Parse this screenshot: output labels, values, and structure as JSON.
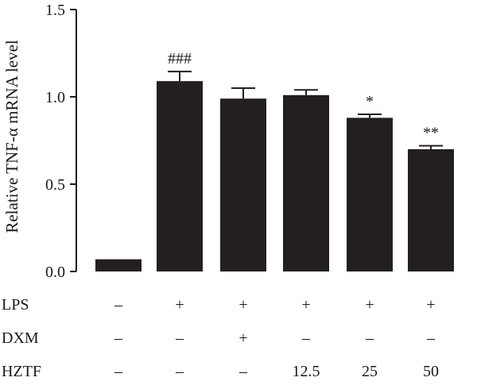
{
  "chart_data": {
    "type": "bar",
    "ylabel": "Relative TNF-α mRNA level",
    "ylim": [
      0,
      1.5
    ],
    "yticks": [
      "0.0",
      "0.5",
      "1.0",
      "1.5"
    ],
    "bar_color": "#231f20",
    "values": [
      0.07,
      1.09,
      0.99,
      1.01,
      0.88,
      0.7
    ],
    "errors": [
      0.0,
      0.055,
      0.06,
      0.03,
      0.02,
      0.02
    ],
    "annotations": [
      "",
      "###",
      "",
      "",
      "*",
      "**"
    ],
    "conditions": [
      {
        "label": "LPS",
        "values": [
          "–",
          "+",
          "+",
          "+",
          "+",
          "+"
        ]
      },
      {
        "label": "DXM",
        "values": [
          "–",
          "–",
          "+",
          "–",
          "–",
          "–"
        ]
      },
      {
        "label": "HZTF",
        "values": [
          "–",
          "–",
          "–",
          "12.5",
          "25",
          "50"
        ]
      }
    ]
  }
}
